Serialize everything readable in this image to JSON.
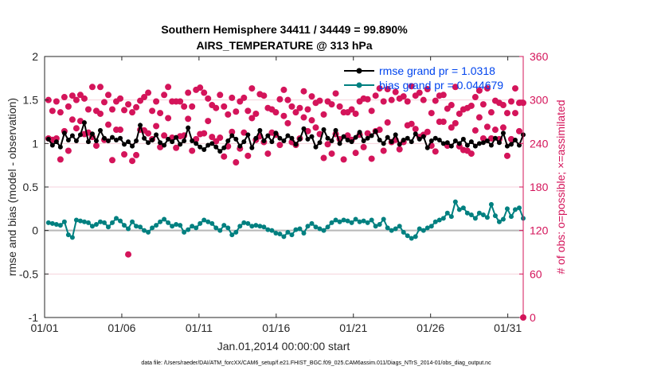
{
  "chart_data": {
    "type": "line",
    "title": "Southern Hemisphere 34411 / 34449 = 99.890%",
    "subtitle": "AIRS_TEMPERATURE @ 313 hPa",
    "xlabel": "Jan.01,2014 00:00:00 start",
    "ylabel": "rmse and bias (model - observation)",
    "ylabel_right": "# of obs: o=possible; ×=assimilated",
    "xlim": [
      0,
      31
    ],
    "ylim": [
      -1,
      2
    ],
    "ylim_right": [
      0,
      360
    ],
    "x_ticks": [
      0,
      5,
      10,
      15,
      20,
      25,
      30
    ],
    "x_tick_labels": [
      "01/01",
      "01/06",
      "01/11",
      "01/16",
      "01/21",
      "01/26",
      "01/31"
    ],
    "y_ticks": [
      -1,
      -0.5,
      0,
      0.5,
      1,
      1.5,
      2
    ],
    "y_tick_labels": [
      "-1",
      "-0.5",
      "0",
      "0.5",
      "1",
      "1.5",
      "2"
    ],
    "y_ticks_right": [
      0,
      60,
      120,
      180,
      240,
      300,
      360
    ],
    "y_tick_labels_right": [
      "0",
      "60",
      "120",
      "180",
      "240",
      "300",
      "360"
    ],
    "legend": [
      {
        "name": "rmse grand pr = 1.0318",
        "color": "#000000"
      },
      {
        "name": "bias grand pr = 0.044679",
        "color": "#008080"
      }
    ],
    "series": [
      {
        "name": "rmse",
        "color": "#000000",
        "values": [
          1.05,
          0.98,
          1.02,
          0.96,
          1.12,
          1.04,
          1.09,
          1.03,
          1.1,
          1.24,
          1.02,
          1.11,
          1.03,
          1.15,
          1.06,
          1.03,
          1.07,
          1.04,
          1.06,
          0.99,
          1.02,
          0.97,
          1.03,
          1.21,
          1.06,
          1.01,
          1.04,
          1.1,
          1.01,
          0.98,
          1.05,
          1.02,
          1.07,
          0.99,
          1.03,
          1.18,
          1.03,
          1.0,
          0.96,
          0.93,
          0.98,
          1.0,
          0.96,
          0.91,
          0.95,
          1.03,
          1.09,
          1.05,
          0.97,
          1.02,
          1.1,
          0.95,
          1.06,
          1.15,
          1.03,
          1.09,
          1.02,
          1.12,
          1.06,
          1.03,
          1.09,
          1.06,
          0.99,
          1.05,
          1.17,
          1.05,
          1.08,
          0.96,
          1.01,
          1.16,
          1.06,
          1.03,
          1.15,
          1.0,
          1.08,
          1.04,
          1.02,
          1.07,
          1.13,
          1.03,
          1.06,
          1.09,
          1.14,
          1.04,
          1.0,
          1.07,
          1.02,
          1.1,
          0.99,
          1.04,
          1.06,
          1.02,
          1.11,
          1.05,
          1.08,
          0.95,
          1.03,
          1.06,
          1.04,
          1.0,
          1.01,
          0.97,
          1.03,
          1.0,
          1.05,
          0.98,
          1.02,
          0.97,
          1.0,
          1.01,
          1.03,
          0.98,
          1.06,
          1.01,
          1.12,
          0.97,
          0.99,
          1.04,
          0.98,
          1.1,
          1.05,
          1.01,
          1.06,
          1.02,
          1.0,
          1.05,
          1.09,
          1.03,
          1.11,
          0.96,
          1.04,
          1.05,
          1.01,
          1.13,
          1.04,
          1.03,
          1.0,
          1.08,
          1.05,
          1.06,
          1.04,
          1.1,
          1.02,
          1.0,
          1.09,
          1.04,
          0.98,
          1.01,
          1.05,
          1.03,
          1.07,
          1.04,
          0.99,
          1.03,
          1.05,
          1.02,
          1.07,
          1.03,
          1.1,
          1.04,
          1.07,
          1.03,
          1.05,
          1.02,
          1.1,
          1.03,
          1.08,
          1.11,
          1.06,
          1.04,
          1.08,
          1.02,
          1.05,
          1.03,
          1.06,
          1.02,
          1.04,
          1.02,
          1.08,
          1.1,
          1.05,
          1.01,
          1.04,
          1.03,
          1.07,
          1.05,
          1.08,
          1.04,
          1.09,
          1.07,
          1.03,
          1.02,
          1.03,
          1.06,
          1.03,
          1.04,
          1.06,
          1.04,
          1.09,
          1.12,
          1.03,
          1.0,
          1.05,
          1.03,
          1.02,
          1.09,
          1.06,
          1.07,
          1.02,
          1.05,
          1.1,
          1.04,
          1.03,
          1.1,
          1.04,
          1.09,
          1.07,
          1.02,
          1.1,
          1.02,
          1.01,
          1.03,
          1.05,
          1.02,
          1.08,
          1.01,
          1.09,
          1.05,
          1.01,
          1.03,
          1.05,
          1.04,
          1.03,
          1.05,
          1.02,
          1.1,
          1.03,
          1.02,
          1.07,
          1.05,
          1.02,
          1.04,
          1.08,
          1.05,
          1.07,
          1.03,
          1.06,
          1.1,
          1.09,
          1.03,
          1.02,
          1.04,
          1.03,
          1.09,
          1.07,
          1.03,
          1.05,
          1.04,
          1.01,
          1.02,
          1.03,
          1.05,
          1.09,
          1.05,
          1.03,
          1.04,
          1.01,
          1.03,
          1.09,
          1.06,
          1.11,
          1.01,
          1.06,
          1.04,
          1.1,
          1.02,
          1.09,
          1.05,
          1.02,
          1.09,
          1.06,
          1.08,
          1.04,
          1.07,
          1.06,
          1.05,
          1.01,
          1.03,
          1.08,
          1.02,
          1.04,
          1.06,
          1.07,
          1.02,
          1.04,
          1.02,
          1.06,
          1.08,
          1.04,
          1.03,
          1.07,
          1.05,
          1.06,
          1.04,
          1.0,
          1.06,
          1.03,
          1.05,
          1.04,
          1.06,
          1.04,
          1.01,
          1.03,
          1.06,
          1.03,
          1.0,
          1.05,
          1.03,
          1.04,
          1.02,
          1.06,
          1.09,
          1.07,
          1.04,
          1.02,
          1.04,
          1.05,
          1.02,
          1.03,
          1.01,
          1.05,
          1.04,
          1.02,
          1.04,
          1.03,
          1.01,
          1.06,
          1.04,
          1.02,
          1.05,
          1.04,
          1.03,
          1.08,
          1.03,
          1.04,
          1.02,
          1.05,
          1.01,
          1.04,
          1.05,
          1.02,
          1.03,
          1.01,
          1.04,
          1.02,
          1.03,
          1.02,
          1.04,
          1.01,
          1.03,
          1.0,
          1.04,
          1.02,
          1.03,
          1.05,
          1.06,
          1.05,
          1.04,
          1.03,
          1.04,
          1.02,
          1.04,
          1.06,
          1.04,
          1.04,
          1.03,
          1.02,
          1.03,
          1.04,
          1.05,
          1.02,
          1.03,
          1.04,
          1.03,
          1.05,
          1.04,
          1.06,
          1.05,
          1.03,
          1.04,
          1.02,
          1.02,
          1.07,
          1.04,
          1.0,
          1.02,
          1.05,
          1.02,
          1.01,
          1.0,
          1.04,
          1.0,
          1.03,
          1.02,
          1.04,
          1.08,
          1.05,
          1.03,
          1.02,
          1.04,
          1.06,
          1.02,
          1.01,
          1.04,
          1.09,
          1.05,
          1.03,
          1.02,
          1.07,
          1.0,
          1.03,
          1.02,
          1.05,
          1.03,
          1.05,
          1.02,
          1.03,
          1.02,
          1.04,
          1.03,
          1.03,
          1.04,
          1.05,
          1.03,
          1.07,
          1.1,
          1.04,
          1.05,
          1.06,
          1.02,
          1.04,
          1.02,
          1.04,
          1.02,
          1.03,
          1.02,
          1.03,
          1.01,
          1.0,
          1.02,
          1.01,
          1.02,
          1.04,
          1.02,
          1.07,
          1.02,
          1.01,
          1.04,
          1.02,
          1.05,
          1.02,
          1.04,
          1.04,
          1.01,
          1.03,
          1.05,
          1.02,
          1.02,
          1.03,
          1.02,
          1.04,
          1.03,
          1.04,
          1.03,
          1.04,
          1.03,
          1.02,
          1.04,
          1.05,
          1.02,
          1.04,
          1.04,
          1.05,
          1.03,
          1.02,
          1.04,
          1.08,
          1.04,
          1.05,
          1.04,
          1.05,
          1.06,
          1.04,
          1.01,
          1.03,
          1.04,
          1.05,
          1.05,
          1.03,
          1.02,
          1.04,
          1.06,
          1.02,
          1.05,
          1.04,
          1.03,
          1.06,
          1.04,
          1.05,
          1.03,
          1.02,
          1.06,
          1.09,
          1.04,
          1.05,
          1.05,
          1.02,
          1.06,
          1.04,
          1.05,
          1.02,
          1.09,
          1.05,
          1.02,
          1.06,
          1.03,
          1.05,
          1.06,
          1.01,
          1.04,
          1.03,
          1.05,
          1.03,
          1.07,
          1.06,
          1.02,
          1.08,
          1.05,
          1.05,
          1.04,
          1.06,
          1.05,
          1.06,
          1.05,
          1.04,
          1.03,
          1.04,
          1.05,
          1.03,
          1.02,
          1.04,
          1.06,
          1.02,
          1.05,
          1.07,
          1.04,
          1.03,
          1.04,
          1.04,
          1.03,
          1.04,
          1.05,
          1.05,
          1.04,
          1.05,
          1.03,
          1.05,
          1.06,
          1.04,
          1.05,
          1.06,
          1.05,
          1.03,
          1.04,
          1.05,
          1.07,
          1.05,
          1.06,
          1.04,
          1.05,
          1.06,
          1.03,
          1.02,
          1.03,
          1.05,
          1.04,
          1.03,
          1.04,
          1.05,
          1.04,
          1.03,
          1.05,
          1.04,
          1.05,
          1.04,
          1.04,
          1.06,
          1.05,
          1.04,
          1.04,
          1.03,
          1.05,
          1.04,
          1.03,
          1.06,
          1.07,
          1.05,
          1.04,
          1.06,
          1.05,
          1.07,
          1.04,
          1.03,
          1.05,
          1.02,
          1.07,
          1.06,
          1.05,
          1.06,
          1.04,
          1.06,
          1.05,
          1.04,
          1.02,
          1.06,
          1.05,
          1.04,
          1.06,
          1.03,
          1.05,
          1.04,
          1.06,
          1.04,
          1.02,
          1.04,
          1.06,
          1.05,
          1.03,
          1.05,
          1.02,
          1.03,
          1.1
        ]
      },
      {
        "name": "bias",
        "color": "#008080",
        "values": []
      },
      {
        "name": "obs possible",
        "color": "#d4145a",
        "values": []
      },
      {
        "name": "obs assimilated",
        "color": "#d4145a",
        "values": []
      }
    ]
  },
  "footer": "data file: /Users/raeder/DAI/ATM_forcXX/CAM6_setup/f.e21.FHIST_BGC.f09_025.CAM6assim.011/Diags_NTrS_2014-01/obs_diag_output.nc"
}
